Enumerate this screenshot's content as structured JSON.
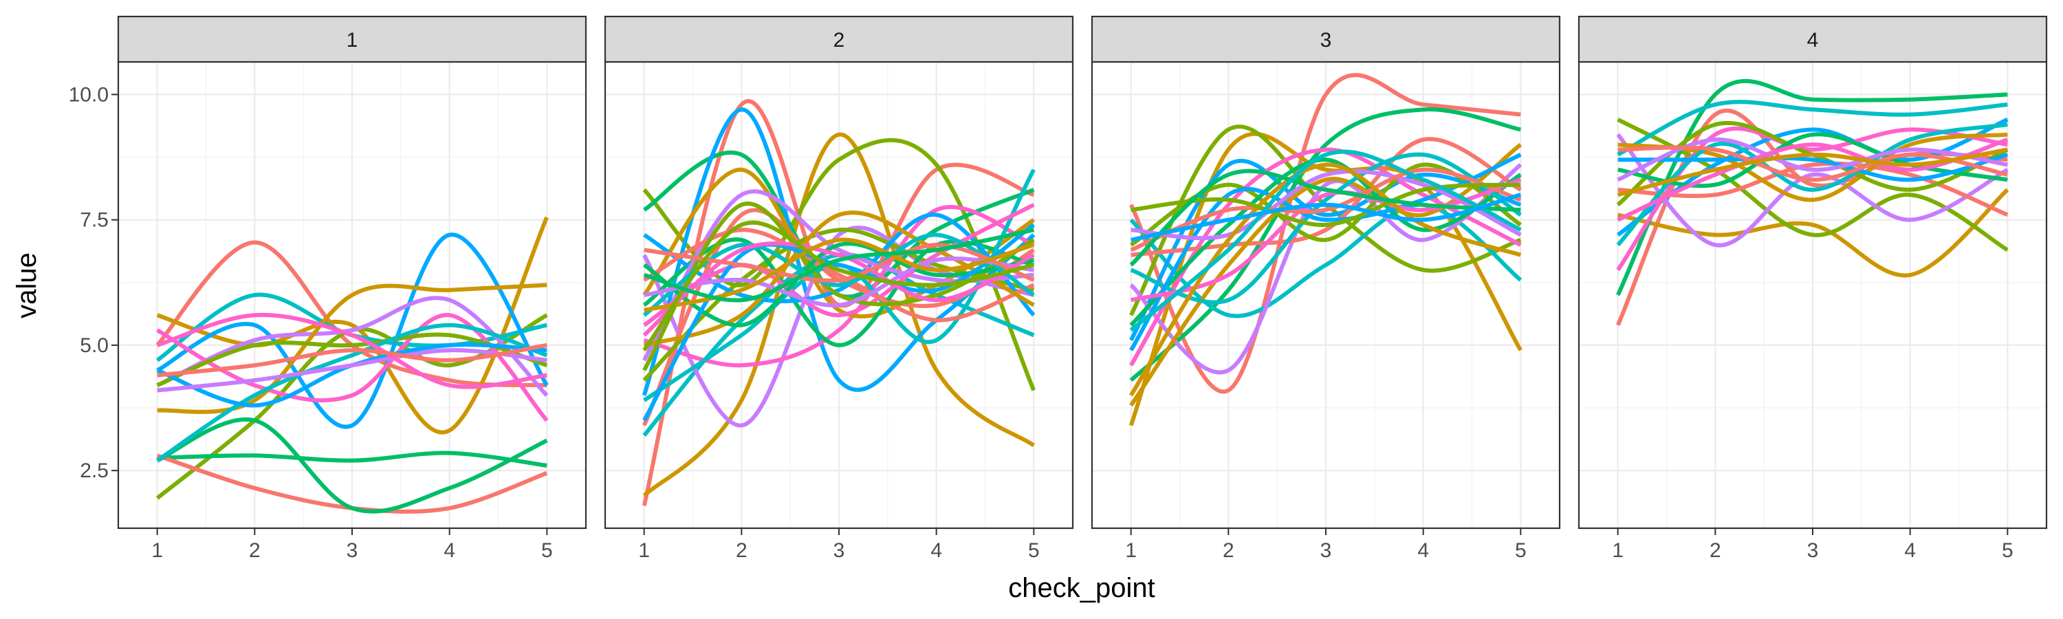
{
  "chart_data": {
    "type": "line",
    "xlabel": "check_point",
    "ylabel": "value",
    "x": [
      1,
      2,
      3,
      4,
      5
    ],
    "xticks": [
      "1",
      "2",
      "3",
      "4",
      "5"
    ],
    "yticks": [
      "2.5",
      "5.0",
      "7.5",
      "10.0"
    ],
    "ytick_values": [
      2.5,
      5.0,
      7.5,
      10.0
    ],
    "ylim": [
      1.35,
      10.65
    ],
    "xlim": [
      0.6,
      5.4
    ],
    "grid": true,
    "curve": "smoothed spline",
    "palette": [
      "#F8766D",
      "#CD9600",
      "#7CAE00",
      "#00BE67",
      "#00BFC4",
      "#00A9FF",
      "#C77CFF",
      "#FF61CC"
    ],
    "facets": [
      {
        "label": "1",
        "series": [
          {
            "values": [
              5.0,
              7.05,
              5.0,
              4.3,
              4.2
            ]
          },
          {
            "values": [
              5.6,
              5.0,
              5.4,
              3.3,
              7.55
            ]
          },
          {
            "values": [
              1.95,
              3.5,
              5.3,
              4.6,
              5.6
            ]
          },
          {
            "values": [
              2.75,
              2.8,
              2.7,
              2.85,
              2.6
            ]
          },
          {
            "values": [
              4.7,
              6.0,
              5.2,
              5.0,
              5.4
            ]
          },
          {
            "values": [
              4.5,
              5.4,
              3.4,
              7.2,
              4.2
            ]
          },
          {
            "values": [
              4.2,
              5.1,
              5.3,
              5.9,
              4.0
            ]
          },
          {
            "values": [
              5.3,
              4.2,
              4.0,
              5.6,
              3.5
            ]
          },
          {
            "values": [
              2.8,
              2.15,
              1.75,
              1.75,
              2.45
            ]
          },
          {
            "values": [
              3.7,
              3.9,
              6.0,
              6.1,
              6.2
            ]
          },
          {
            "values": [
              4.2,
              5.0,
              5.0,
              5.2,
              4.6
            ]
          },
          {
            "values": [
              2.7,
              3.5,
              1.75,
              2.15,
              3.1
            ]
          },
          {
            "values": [
              2.7,
              4.0,
              4.8,
              5.4,
              4.8
            ]
          },
          {
            "values": [
              4.5,
              3.8,
              4.6,
              5.0,
              4.9
            ]
          },
          {
            "values": [
              4.1,
              4.3,
              4.6,
              4.9,
              4.7
            ]
          },
          {
            "values": [
              5.0,
              5.6,
              5.2,
              4.2,
              4.4
            ]
          },
          {
            "values": [
              4.4,
              4.6,
              4.9,
              4.7,
              5.0
            ]
          }
        ]
      },
      {
        "label": "2",
        "series": [
          {
            "values": [
              1.8,
              9.8,
              5.8,
              8.5,
              8.0
            ]
          },
          {
            "values": [
              2.0,
              3.9,
              9.2,
              4.5,
              3.0
            ]
          },
          {
            "values": [
              8.1,
              6.2,
              8.7,
              8.6,
              4.1
            ]
          },
          {
            "values": [
              7.7,
              8.8,
              6.0,
              7.3,
              8.1
            ]
          },
          {
            "values": [
              3.2,
              5.5,
              6.8,
              6.0,
              5.2
            ]
          },
          {
            "values": [
              4.0,
              9.7,
              4.3,
              5.5,
              7.2
            ]
          },
          {
            "values": [
              6.8,
              3.4,
              7.2,
              6.5,
              6.0
            ]
          },
          {
            "values": [
              5.1,
              4.6,
              5.3,
              7.7,
              7.0
            ]
          },
          {
            "values": [
              3.4,
              7.6,
              6.3,
              5.8,
              6.9
            ]
          },
          {
            "values": [
              6.0,
              8.5,
              5.7,
              6.2,
              7.5
            ]
          },
          {
            "values": [
              4.3,
              6.3,
              7.3,
              6.6,
              6.1
            ]
          },
          {
            "values": [
              5.8,
              7.1,
              5.0,
              7.0,
              6.6
            ]
          },
          {
            "values": [
              3.9,
              5.2,
              6.6,
              5.1,
              8.5
            ]
          },
          {
            "values": [
              7.2,
              6.0,
              6.1,
              7.6,
              5.6
            ]
          },
          {
            "values": [
              4.7,
              8.0,
              6.9,
              6.3,
              6.4
            ]
          },
          {
            "values": [
              5.4,
              6.6,
              5.6,
              6.8,
              7.8
            ]
          },
          {
            "values": [
              6.3,
              7.3,
              6.4,
              5.5,
              6.2
            ]
          },
          {
            "values": [
              5.0,
              5.6,
              7.6,
              6.9,
              5.8
            ]
          },
          {
            "values": [
              4.5,
              7.8,
              6.0,
              6.0,
              7.1
            ]
          },
          {
            "values": [
              6.6,
              5.4,
              7.0,
              6.4,
              6.7
            ]
          },
          {
            "values": [
              5.6,
              7.0,
              6.2,
              7.2,
              6.0
            ]
          },
          {
            "values": [
              3.5,
              6.8,
              6.6,
              6.1,
              7.4
            ]
          },
          {
            "values": [
              6.0,
              6.3,
              5.8,
              6.7,
              6.5
            ]
          },
          {
            "values": [
              5.2,
              6.9,
              6.8,
              5.9,
              6.8
            ]
          },
          {
            "values": [
              6.9,
              6.6,
              6.3,
              7.0,
              6.3
            ]
          },
          {
            "values": [
              5.7,
              6.1,
              7.1,
              6.5,
              7.0
            ]
          },
          {
            "values": [
              4.9,
              7.4,
              6.5,
              6.2,
              6.6
            ]
          },
          {
            "values": [
              6.4,
              5.9,
              6.7,
              6.9,
              7.3
            ]
          }
        ]
      },
      {
        "label": "3",
        "series": [
          {
            "values": [
              7.8,
              4.1,
              10.0,
              9.8,
              9.6
            ]
          },
          {
            "values": [
              3.4,
              8.9,
              8.5,
              8.2,
              4.9
            ]
          },
          {
            "values": [
              5.6,
              9.3,
              7.8,
              6.5,
              7.1
            ]
          },
          {
            "values": [
              4.3,
              6.1,
              9.0,
              9.7,
              9.3
            ]
          },
          {
            "values": [
              7.5,
              5.6,
              6.6,
              7.8,
              6.3
            ]
          },
          {
            "values": [
              5.1,
              8.6,
              7.6,
              8.4,
              7.8
            ]
          },
          {
            "values": [
              6.2,
              4.5,
              8.2,
              7.1,
              8.6
            ]
          },
          {
            "values": [
              4.6,
              7.8,
              8.9,
              8.0,
              7.0
            ]
          },
          {
            "values": [
              6.8,
              7.0,
              7.3,
              9.1,
              8.1
            ]
          },
          {
            "values": [
              3.8,
              6.6,
              8.3,
              7.6,
              9.0
            ]
          },
          {
            "values": [
              7.0,
              8.2,
              7.1,
              8.6,
              7.4
            ]
          },
          {
            "values": [
              5.4,
              7.4,
              8.7,
              7.3,
              8.4
            ]
          },
          {
            "values": [
              6.5,
              5.9,
              7.9,
              8.8,
              7.6
            ]
          },
          {
            "values": [
              4.9,
              8.0,
              7.5,
              7.9,
              8.8
            ]
          },
          {
            "values": [
              7.3,
              7.2,
              8.4,
              8.2,
              7.2
            ]
          },
          {
            "values": [
              5.9,
              6.4,
              8.0,
              7.7,
              8.3
            ]
          },
          {
            "values": [
              6.9,
              7.7,
              7.7,
              8.5,
              7.9
            ]
          },
          {
            "values": [
              4.0,
              7.1,
              8.6,
              7.4,
              6.8
            ]
          },
          {
            "values": [
              7.7,
              7.9,
              7.4,
              8.1,
              8.2
            ]
          },
          {
            "values": [
              6.6,
              8.4,
              8.1,
              7.8,
              7.7
            ]
          },
          {
            "values": [
              5.3,
              6.9,
              8.8,
              8.3,
              7.3
            ]
          },
          {
            "values": [
              7.1,
              7.5,
              7.8,
              7.5,
              8.0
            ]
          }
        ]
      },
      {
        "label": "4",
        "series": [
          {
            "values": [
              5.4,
              9.6,
              8.2,
              8.8,
              8.7
            ]
          },
          {
            "values": [
              7.6,
              7.2,
              7.4,
              6.4,
              8.1
            ]
          },
          {
            "values": [
              9.5,
              8.5,
              7.2,
              8.0,
              6.9
            ]
          },
          {
            "values": [
              6.0,
              10.0,
              9.9,
              9.9,
              10.0
            ]
          },
          {
            "values": [
              8.8,
              9.8,
              9.7,
              9.6,
              9.8
            ]
          },
          {
            "values": [
              7.2,
              8.6,
              9.3,
              8.7,
              9.5
            ]
          },
          {
            "values": [
              9.2,
              7.0,
              8.4,
              7.5,
              8.5
            ]
          },
          {
            "values": [
              6.5,
              9.2,
              8.9,
              9.3,
              9.0
            ]
          },
          {
            "values": [
              8.1,
              8.0,
              8.6,
              8.4,
              7.6
            ]
          },
          {
            "values": [
              9.0,
              8.8,
              7.9,
              9.0,
              9.2
            ]
          },
          {
            "values": [
              7.8,
              9.4,
              8.8,
              8.1,
              8.9
            ]
          },
          {
            "values": [
              8.5,
              8.2,
              9.2,
              8.6,
              8.3
            ]
          },
          {
            "values": [
              7.0,
              9.0,
              8.1,
              9.1,
              9.4
            ]
          },
          {
            "values": [
              8.7,
              8.7,
              8.7,
              8.3,
              8.8
            ]
          },
          {
            "values": [
              8.3,
              9.1,
              8.5,
              8.9,
              8.6
            ]
          },
          {
            "values": [
              7.5,
              8.4,
              9.0,
              8.5,
              9.1
            ]
          },
          {
            "values": [
              8.9,
              8.9,
              8.3,
              8.8,
              8.4
            ]
          },
          {
            "values": [
              8.0,
              8.5,
              8.8,
              8.6,
              8.9
            ]
          }
        ]
      }
    ]
  }
}
